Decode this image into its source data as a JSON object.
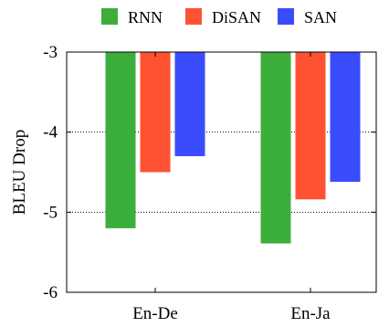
{
  "chart_data": {
    "type": "bar",
    "title": "",
    "xlabel": "",
    "ylabel": "BLEU Drop",
    "categories": [
      "En-De",
      "En-Ja"
    ],
    "series": [
      {
        "name": "RNN",
        "color": "#3cae3c",
        "values": [
          -5.2,
          -5.39
        ]
      },
      {
        "name": "DiSAN",
        "color": "#ff5233",
        "values": [
          -4.5,
          -4.84
        ]
      },
      {
        "name": "SAN",
        "color": "#3b4cff",
        "values": [
          -4.3,
          -4.62
        ]
      }
    ],
    "ylim": [
      -6,
      -3
    ],
    "yticks": [
      -3,
      -4,
      -5,
      -6
    ],
    "ytick_labels": [
      "-3",
      "-4",
      "-5",
      "-6"
    ],
    "grid": "dotted horizontal lines at -4 and -5",
    "legend_position": "top"
  }
}
